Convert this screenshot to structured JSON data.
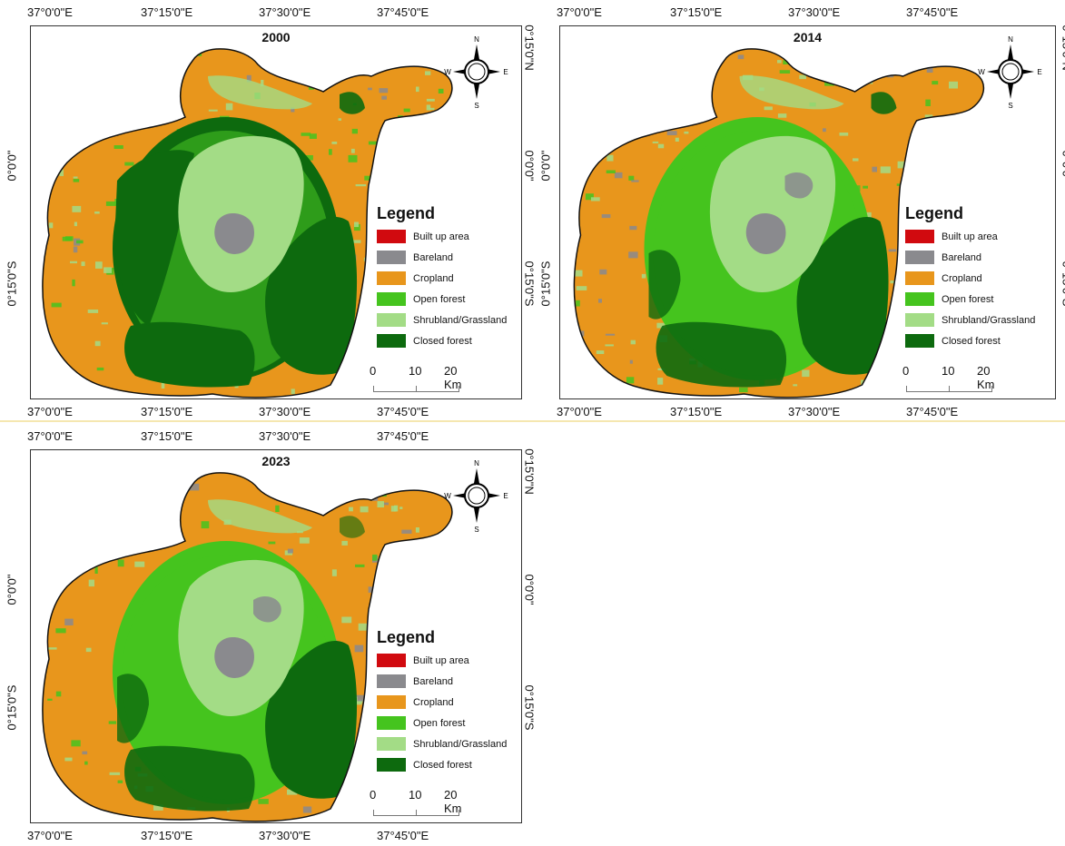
{
  "panels": [
    {
      "year": "2000",
      "seed": 11,
      "green_share": 0.45
    },
    {
      "year": "2014",
      "seed": 23,
      "green_share": 0.55
    },
    {
      "year": "2023",
      "seed": 37,
      "green_share": 0.6
    }
  ],
  "axes": {
    "top_ticks": [
      "37°0'0\"E",
      "37°15'0\"E",
      "37°30'0\"E",
      "37°45'0\"E"
    ],
    "bottom_ticks": [
      "37°0'0\"E",
      "37°15'0\"E",
      "37°30'0\"E",
      "37°45'0\"E"
    ],
    "left_ticks": [
      "0°0'0\"",
      "0°15'0\"S"
    ],
    "right_ticks": [
      "0°15'0\"N",
      "0°0'0\"",
      "0°15'0\"S"
    ]
  },
  "legend": {
    "title": "Legend",
    "items": [
      {
        "label": "Built up area",
        "color": "#d10a0f"
      },
      {
        "label": "Bareland",
        "color": "#8a8a8e"
      },
      {
        "label": "Cropland",
        "color": "#e8961c"
      },
      {
        "label": "Open forest",
        "color": "#45c41e"
      },
      {
        "label": "Shrubland/Grassland",
        "color": "#a3dc86"
      },
      {
        "label": "Closed forest",
        "color": "#0d6a0e"
      }
    ]
  },
  "scale": {
    "labels": [
      "0",
      "10",
      "20 Km"
    ]
  },
  "compass": {
    "n": "N",
    "s": "S",
    "e": "E",
    "w": "W"
  }
}
